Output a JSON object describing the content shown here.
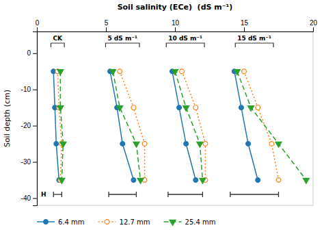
{
  "chart_data": {
    "type": "line",
    "title": "Soil salinity (ECe)  (dS m⁻¹)",
    "ylabel": "Soil depth (cm)",
    "xlim": [
      0,
      20
    ],
    "ylim": [
      -42,
      6
    ],
    "xticks": [
      0,
      5,
      10,
      15,
      20
    ],
    "yticks": [
      0,
      -10,
      -20,
      -30,
      -40
    ],
    "y": [
      -5,
      -15,
      -25,
      -35
    ],
    "lsd_label": "H",
    "groups": [
      {
        "label": "CK",
        "lsd": [
          1.2,
          1.8
        ],
        "series": [
          {
            "name": "6.4 mm",
            "marker": "circle",
            "line_style": "solid",
            "x": [
              1.2,
              1.3,
              1.4,
              1.6
            ]
          },
          {
            "name": "12.7 mm",
            "marker": "open-circle",
            "line_style": "dotted",
            "x": [
              1.5,
              1.6,
              1.8,
              1.7
            ]
          },
          {
            "name": "25.4 mm",
            "marker": "triangle-down",
            "line_style": "dashed",
            "x": [
              1.7,
              1.7,
              1.9,
              1.8
            ]
          }
        ]
      },
      {
        "label": "5 dS m⁻¹",
        "lsd": [
          5.2,
          7.2
        ],
        "series": [
          {
            "name": "6.4 mm",
            "marker": "circle",
            "line_style": "solid",
            "x": [
              5.3,
              5.8,
              6.2,
              7.0
            ]
          },
          {
            "name": "12.7 mm",
            "marker": "open-circle",
            "line_style": "dotted",
            "x": [
              6.0,
              7.0,
              7.8,
              7.8
            ]
          },
          {
            "name": "25.4 mm",
            "marker": "triangle-down",
            "line_style": "dashed",
            "x": [
              5.5,
              6.0,
              7.2,
              7.5
            ]
          }
        ]
      },
      {
        "label": "10 dS m⁻¹",
        "lsd": [
          9.5,
          12.0
        ],
        "series": [
          {
            "name": "6.4 mm",
            "marker": "circle",
            "line_style": "solid",
            "x": [
              9.8,
              10.3,
              10.8,
              11.5
            ]
          },
          {
            "name": "12.7 mm",
            "marker": "open-circle",
            "line_style": "dotted",
            "x": [
              10.5,
              11.5,
              12.2,
              12.2
            ]
          },
          {
            "name": "25.4 mm",
            "marker": "triangle-down",
            "line_style": "dashed",
            "x": [
              10.0,
              10.8,
              11.8,
              12.0
            ]
          }
        ]
      },
      {
        "label": "15 dS m⁻¹",
        "lsd": [
          14.0,
          17.5
        ],
        "series": [
          {
            "name": "6.4 mm",
            "marker": "circle",
            "line_style": "solid",
            "x": [
              14.3,
              14.8,
              15.3,
              16.0
            ]
          },
          {
            "name": "12.7 mm",
            "marker": "open-circle",
            "line_style": "dotted",
            "x": [
              15.0,
              16.0,
              17.0,
              17.5
            ]
          },
          {
            "name": "25.4 mm",
            "marker": "triangle-down",
            "line_style": "dashed",
            "x": [
              14.5,
              15.5,
              17.5,
              19.5
            ]
          }
        ]
      }
    ]
  }
}
